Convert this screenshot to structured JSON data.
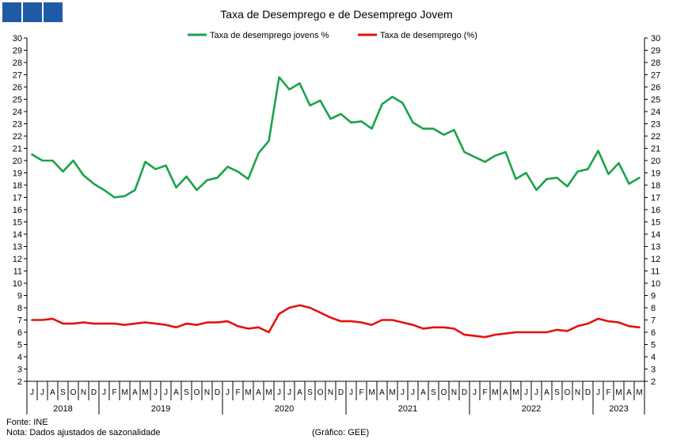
{
  "chart_data": {
    "type": "line",
    "title": "Taxa de Desemprego e de Desemprego Jovem",
    "ylim": [
      2,
      30
    ],
    "yticks": [
      2,
      3,
      4,
      5,
      6,
      7,
      8,
      9,
      10,
      11,
      12,
      13,
      14,
      15,
      16,
      17,
      18,
      19,
      20,
      21,
      22,
      23,
      24,
      25,
      26,
      27,
      28,
      29,
      30
    ],
    "y_axis_right_mirror": true,
    "grid": false,
    "legend": "top-center",
    "x_month_letters": [
      "J",
      "J",
      "A",
      "S",
      "O",
      "N",
      "D",
      "J",
      "F",
      "M",
      "A",
      "M",
      "J",
      "J",
      "A",
      "S",
      "O",
      "N",
      "D",
      "J",
      "F",
      "M",
      "A",
      "M",
      "J",
      "J",
      "A",
      "S",
      "O",
      "N",
      "D",
      "J",
      "F",
      "M",
      "A",
      "M",
      "J",
      "J",
      "A",
      "S",
      "O",
      "N",
      "D",
      "J",
      "F",
      "M",
      "A",
      "M",
      "J",
      "J",
      "A",
      "S",
      "O",
      "N",
      "D",
      "J",
      "F",
      "M",
      "A",
      "M"
    ],
    "years": [
      {
        "label": "2018",
        "start": 0,
        "end": 6
      },
      {
        "label": "2019",
        "start": 7,
        "end": 18
      },
      {
        "label": "2020",
        "start": 19,
        "end": 30
      },
      {
        "label": "2021",
        "start": 31,
        "end": 42
      },
      {
        "label": "2022",
        "start": 43,
        "end": 54
      },
      {
        "label": "2023",
        "start": 55,
        "end": 59
      }
    ],
    "series": [
      {
        "name": "Taxa de desemprego jovens %",
        "color": "#1aa34a",
        "values": [
          20.5,
          20.0,
          20.0,
          19.1,
          20.0,
          18.8,
          18.1,
          17.6,
          17.0,
          17.1,
          17.6,
          19.9,
          19.3,
          19.6,
          17.8,
          18.7,
          17.6,
          18.4,
          18.6,
          19.5,
          19.1,
          18.5,
          20.6,
          21.6,
          26.8,
          25.8,
          26.3,
          24.5,
          24.9,
          23.4,
          23.8,
          23.1,
          23.2,
          22.6,
          24.6,
          25.2,
          24.7,
          23.1,
          22.6,
          22.6,
          22.1,
          22.5,
          20.7,
          20.3,
          19.9,
          20.4,
          20.7,
          18.5,
          19.0,
          17.6,
          18.5,
          18.6,
          17.9,
          19.1,
          19.3,
          20.8,
          18.9,
          19.8,
          18.1,
          18.6
        ]
      },
      {
        "name": "Taxa de desemprego (%)",
        "color": "#e3130e",
        "values": [
          7.0,
          7.0,
          7.1,
          6.7,
          6.7,
          6.8,
          6.7,
          6.7,
          6.7,
          6.6,
          6.7,
          6.8,
          6.7,
          6.6,
          6.4,
          6.7,
          6.6,
          6.8,
          6.8,
          6.9,
          6.5,
          6.3,
          6.4,
          6.0,
          7.5,
          8.0,
          8.2,
          8.0,
          7.6,
          7.2,
          6.9,
          6.9,
          6.8,
          6.6,
          7.0,
          7.0,
          6.8,
          6.6,
          6.3,
          6.4,
          6.4,
          6.3,
          5.8,
          5.7,
          5.6,
          5.8,
          5.9,
          6.0,
          6.0,
          6.0,
          6.0,
          6.2,
          6.1,
          6.5,
          6.7,
          7.1,
          6.9,
          6.8,
          6.5,
          6.4
        ]
      }
    ]
  },
  "footer": {
    "source": "Fonte: INE",
    "note": "Nota: Dados ajustados de sazonalidade",
    "credit": "(Gráfico: GEE)"
  }
}
